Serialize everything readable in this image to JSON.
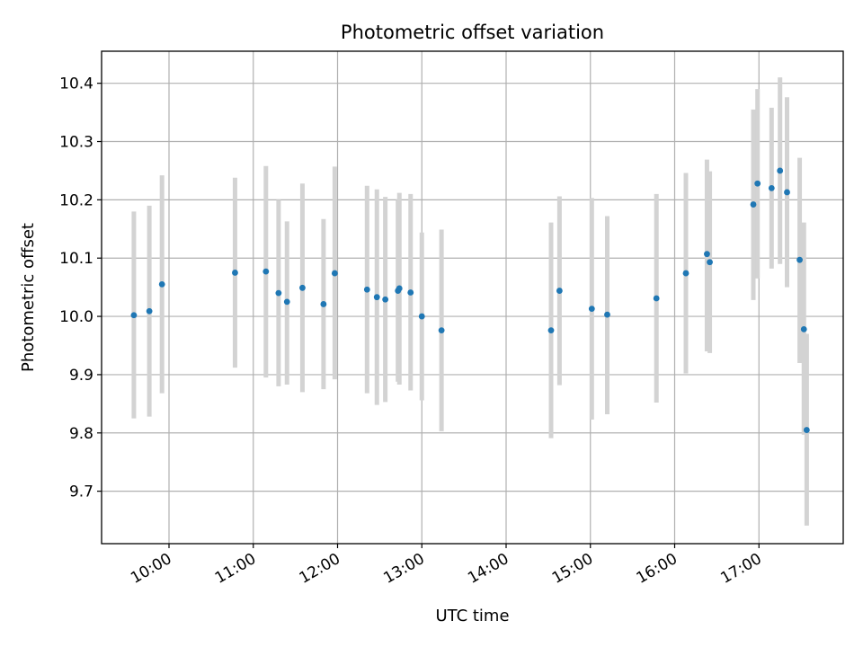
{
  "chart_data": {
    "type": "scatter",
    "title": "Photometric offset variation",
    "xlabel": "UTC time",
    "ylabel": "Photometric offset",
    "x_tick_labels": [
      "10:00",
      "11:00",
      "12:00",
      "13:00",
      "14:00",
      "15:00",
      "16:00",
      "17:00"
    ],
    "y_tick_labels": [
      "9.7",
      "9.8",
      "9.9",
      "10.0",
      "10.1",
      "10.2",
      "10.3",
      "10.4"
    ],
    "xlim": [
      "09:12",
      "18:00"
    ],
    "ylim": [
      9.61,
      10.455
    ],
    "grid": true,
    "colors": {
      "marker": "#1f77b4",
      "errorbar": "#d3d3d3",
      "grid": "#b0b0b0"
    },
    "points": [
      {
        "x": "09:35",
        "y": 10.002,
        "ylow": 9.825,
        "yhigh": 10.18
      },
      {
        "x": "09:46",
        "y": 10.009,
        "ylow": 9.828,
        "yhigh": 10.19
      },
      {
        "x": "09:55",
        "y": 10.055,
        "ylow": 9.868,
        "yhigh": 10.242
      },
      {
        "x": "10:47",
        "y": 10.075,
        "ylow": 9.912,
        "yhigh": 10.238
      },
      {
        "x": "11:09",
        "y": 10.077,
        "ylow": 9.895,
        "yhigh": 10.258
      },
      {
        "x": "11:18",
        "y": 10.04,
        "ylow": 9.88,
        "yhigh": 10.2
      },
      {
        "x": "11:24",
        "y": 10.025,
        "ylow": 9.883,
        "yhigh": 10.163
      },
      {
        "x": "11:35",
        "y": 10.049,
        "ylow": 9.87,
        "yhigh": 10.228
      },
      {
        "x": "11:50",
        "y": 10.021,
        "ylow": 9.875,
        "yhigh": 10.167
      },
      {
        "x": "11:58",
        "y": 10.074,
        "ylow": 9.892,
        "yhigh": 10.257
      },
      {
        "x": "12:21",
        "y": 10.046,
        "ylow": 9.868,
        "yhigh": 10.224
      },
      {
        "x": "12:28",
        "y": 10.033,
        "ylow": 9.848,
        "yhigh": 10.218
      },
      {
        "x": "12:34",
        "y": 10.029,
        "ylow": 9.853,
        "yhigh": 10.205
      },
      {
        "x": "12:43",
        "y": 10.044,
        "ylow": 9.888,
        "yhigh": 10.2
      },
      {
        "x": "12:44",
        "y": 10.048,
        "ylow": 9.883,
        "yhigh": 10.212
      },
      {
        "x": "12:52",
        "y": 10.041,
        "ylow": 9.873,
        "yhigh": 10.21
      },
      {
        "x": "13:00",
        "y": 10.0,
        "ylow": 9.856,
        "yhigh": 10.144
      },
      {
        "x": "13:14",
        "y": 9.976,
        "ylow": 9.803,
        "yhigh": 10.149
      },
      {
        "x": "14:32",
        "y": 9.976,
        "ylow": 9.791,
        "yhigh": 10.161
      },
      {
        "x": "14:38",
        "y": 10.044,
        "ylow": 9.882,
        "yhigh": 10.206
      },
      {
        "x": "15:01",
        "y": 10.013,
        "ylow": 9.823,
        "yhigh": 10.203
      },
      {
        "x": "15:12",
        "y": 10.003,
        "ylow": 9.832,
        "yhigh": 10.172
      },
      {
        "x": "15:47",
        "y": 10.031,
        "ylow": 9.852,
        "yhigh": 10.21
      },
      {
        "x": "16:08",
        "y": 10.074,
        "ylow": 9.902,
        "yhigh": 10.246
      },
      {
        "x": "16:23",
        "y": 10.107,
        "ylow": 9.94,
        "yhigh": 10.269
      },
      {
        "x": "16:25",
        "y": 10.093,
        "ylow": 9.937,
        "yhigh": 10.249
      },
      {
        "x": "16:56",
        "y": 10.192,
        "ylow": 10.028,
        "yhigh": 10.355
      },
      {
        "x": "16:59",
        "y": 10.228,
        "ylow": 10.065,
        "yhigh": 10.39
      },
      {
        "x": "17:09",
        "y": 10.22,
        "ylow": 10.082,
        "yhigh": 10.358
      },
      {
        "x": "17:15",
        "y": 10.25,
        "ylow": 10.09,
        "yhigh": 10.41
      },
      {
        "x": "17:20",
        "y": 10.213,
        "ylow": 10.05,
        "yhigh": 10.376
      },
      {
        "x": "17:29",
        "y": 10.097,
        "ylow": 9.92,
        "yhigh": 10.272
      },
      {
        "x": "17:32",
        "y": 9.978,
        "ylow": 9.797,
        "yhigh": 10.161
      },
      {
        "x": "17:34",
        "y": 9.805,
        "ylow": 9.641,
        "yhigh": 9.97
      }
    ]
  }
}
